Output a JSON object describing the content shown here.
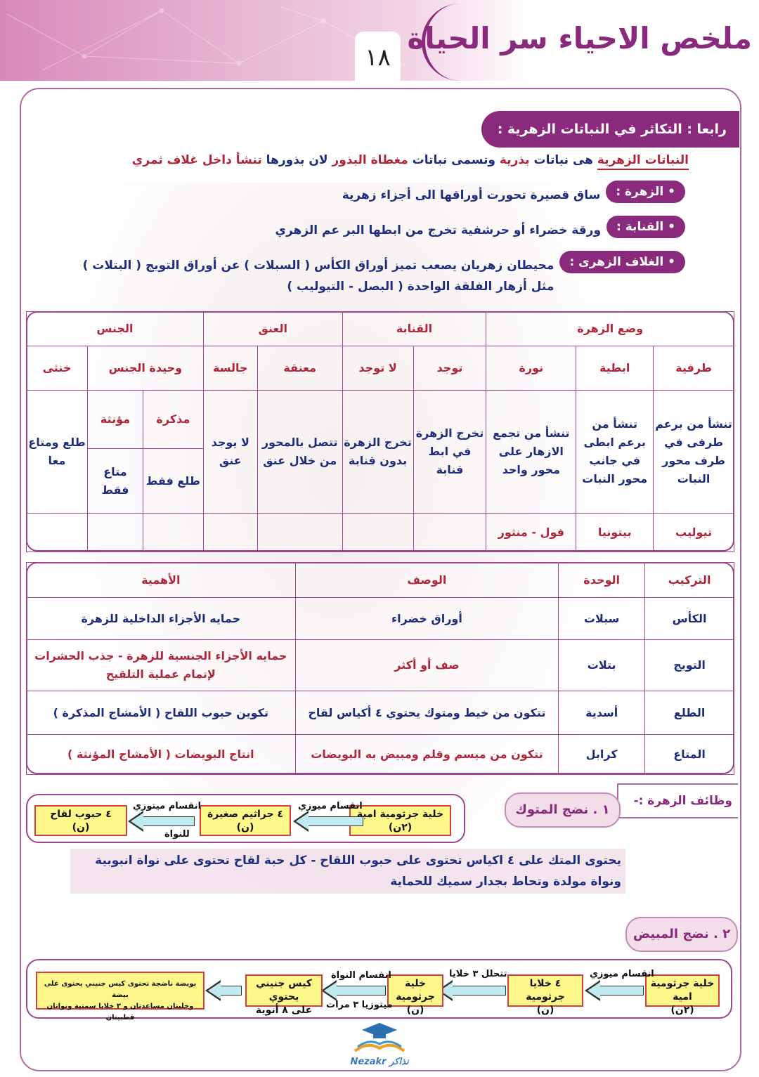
{
  "header": {
    "title": "ملخص الاحياء سر الحياة",
    "page_number": "١٨"
  },
  "section": {
    "title": "رابعا : التكاثر في النباتات الزهرية :"
  },
  "intro": {
    "term": "النباتات الزهرية",
    "p1": " هى نباتات ",
    "seed": "بذرية",
    "p2": " وتسمى نباتات ",
    "angio": "مغطاة البذور",
    "p3": " لان بذورها ",
    "p4": "تنشأ داخل غلاف ثمري"
  },
  "definitions": [
    {
      "term": "• الزهرة :",
      "text": "ساق قصيرة تحورت أوراقها الى أجزاء زهرية"
    },
    {
      "term": "• القنابة :",
      "text": "ورقة خضراء أو حرشفية تخرج من ابطها البر عم الزهري"
    },
    {
      "term": "• الغلاف الزهرى :",
      "text": "محيطان زهريان يصعب تميز أوراق الكأس ( السبلات ) عن أوراق التويج ( البتلات ) مثل أزهار الفلقة الواحدة ( البصل - التيوليب )"
    }
  ],
  "table1": {
    "groups": [
      "وضع الزهرة",
      "القنابة",
      "العنق",
      "الجنس"
    ],
    "sub": [
      "طرفية",
      "ابطية",
      "نورة",
      "توجد",
      "لا توجد",
      "معنقة",
      "جالسة",
      "وحيدة الجنس",
      "خنثى"
    ],
    "desc": [
      "تنشأ من برعم طرفى في طرف محور النبات",
      "تنشأ من برعم ابطى في جانب محور النبات",
      "تنشأ من تجمع الازهار على محور واحد",
      "تخرج الزهرة في ابط قنابة",
      "تخرج الزهرة بدون قنابة",
      "تتصل بالمحور من خلال عنق",
      "لا يوجد عنق",
      "طلع ومتاع معا"
    ],
    "unisex": {
      "male": "مذكرة",
      "female": "مؤنثة",
      "male_desc": "طلع فقط",
      "female_desc": "متاع فقط"
    },
    "examples": [
      "تيوليب",
      "بيتونيا",
      "فول - منثور"
    ]
  },
  "table2": {
    "headers": [
      "التركيب",
      "الوحدة",
      "الوصف",
      "الأهمية"
    ],
    "rows": [
      [
        "الكأس",
        "سبلات",
        "أوراق خضراء",
        "حمايه الأجزاء الداخلية للزهرة"
      ],
      [
        "التويج",
        "بتلات",
        "صف أو أكثر",
        "حمايه الأجزاء الجنسية للزهرة - جذب الحشرات لإتمام عملية التلقيح"
      ],
      [
        "الطلع",
        "أسدية",
        "تتكون من خيط ومتوك يحتوي ٤ أكياس لقاح",
        "تكوين حبوب اللقاح ( الأمشاج المذكرة )"
      ],
      [
        "المتاع",
        "كرابل",
        "تتكون من ميسم وقلم ومبيض به البويضات",
        "انتاج البويضات ( الأمشاج المؤنثة )"
      ]
    ]
  },
  "functions": {
    "title": "وظائف الزهرة :-",
    "anther_title": "١ . نضج المتوك",
    "ovary_title": "٢ . نضج المبيض",
    "anther_text": "يحتوى المتك على ٤ اكياس تحتوى على حبوب اللقاح - كل حبة لقاح تحتوى على نواة انبوبية ونواة مولدة وتحاط بجدار سميك للحماية"
  },
  "flow1": {
    "boxes": [
      [
        "خلية جرثومية امية",
        "(٢ن)"
      ],
      [
        "٤ جراثيم صغيرة",
        "(ن)"
      ],
      [
        "٤ حبوب لقاح",
        "(ن)"
      ]
    ],
    "labels": [
      "انقسام ميوزي",
      "انقسام ميتوزي",
      "للنواة"
    ]
  },
  "flow2": {
    "boxes": [
      [
        "خلية جرثومية امية",
        "(٢ن)"
      ],
      [
        "٤ خلايا جرثومية",
        "(ن)"
      ],
      [
        "خلية جرثومية",
        "(ن)"
      ],
      [
        "كيس جنيني يحتوي",
        "على ٨ أنوية"
      ],
      [
        "بويضة ناضجة تحتوى كيس جنيني يحتوى على بيضة",
        "وخليتان مساعدتان و ٣ خلايا سمتية ونواتان قطبيتان"
      ]
    ],
    "labels": [
      "انقسام ميوزي",
      "تتحلل ٣ خلايا",
      "انقسام النواة",
      "ميتوزيا ٣ مرات"
    ]
  },
  "logo": {
    "text": "Nezakr نذاكر"
  },
  "colors": {
    "purple": "#8a2a7c",
    "navy": "#1e2e7a",
    "red": "#b0263a",
    "box_yellow": "#fdf78a"
  }
}
